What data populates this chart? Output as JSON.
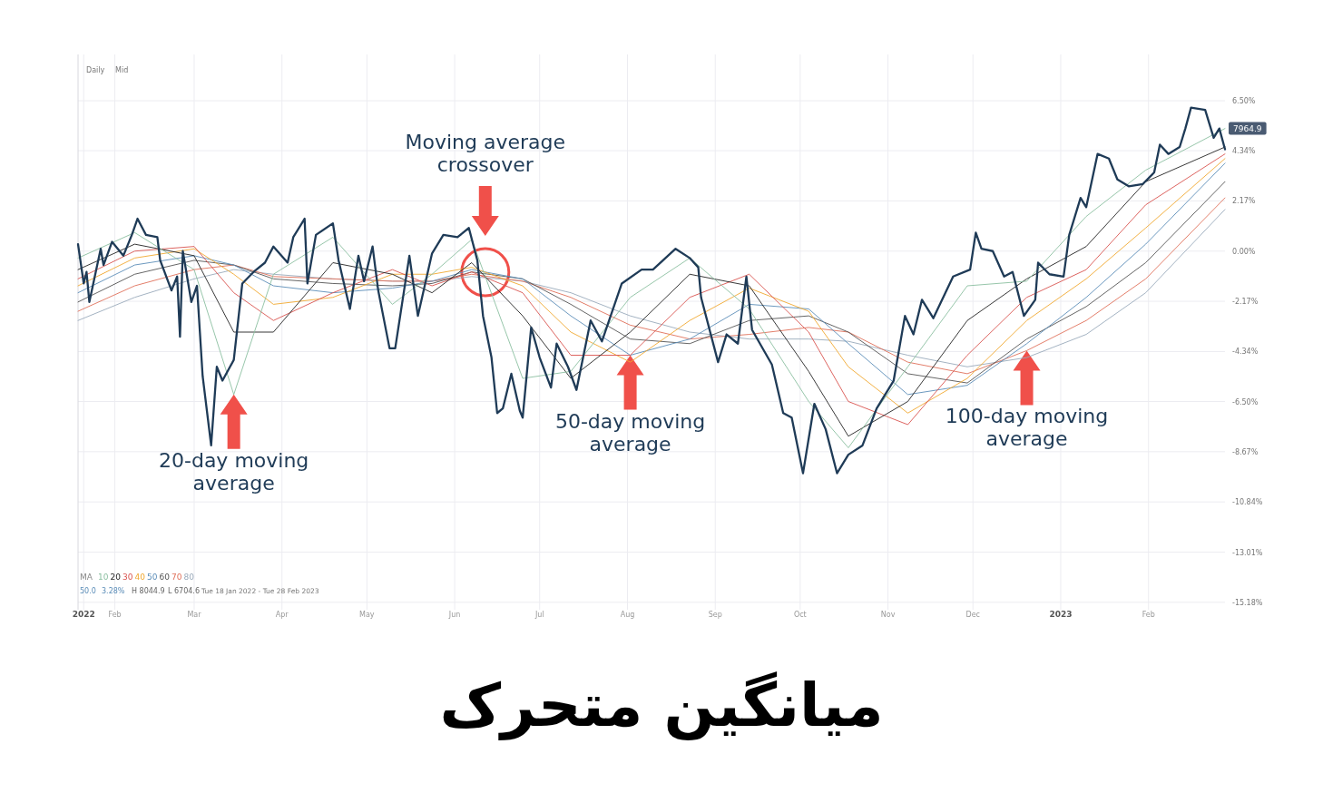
{
  "chart_data": {
    "type": "line",
    "title": "میانگین متحرک",
    "legend_title": "MA",
    "legend": "bottom left",
    "grid": true,
    "xlim": [
      "2022-01-19",
      "2023-02-28"
    ],
    "xticks": [
      {
        "value": "2022-01-21",
        "label": "2022"
      },
      {
        "value": "2022-02-01",
        "label": "Feb"
      },
      {
        "value": "2022-03-01",
        "label": "Mar"
      },
      {
        "value": "2022-04-01",
        "label": "Apr"
      },
      {
        "value": "2022-05-01",
        "label": "May"
      },
      {
        "value": "2022-06-01",
        "label": "Jun"
      },
      {
        "value": "2022-07-01",
        "label": "Jul"
      },
      {
        "value": "2022-08-01",
        "label": "Aug"
      },
      {
        "value": "2022-09-01",
        "label": "Sep"
      },
      {
        "value": "2022-10-01",
        "label": "Oct"
      },
      {
        "value": "2022-11-01",
        "label": "Nov"
      },
      {
        "value": "2022-12-01",
        "label": "Dec"
      },
      {
        "value": "2023-01-01",
        "label": "2023"
      },
      {
        "value": "2023-02-01",
        "label": "Feb"
      }
    ],
    "ylim": [
      -15.5,
      8.5
    ],
    "yticks": [
      {
        "value": 6.5,
        "label": "6.50%"
      },
      {
        "value": 4.34,
        "label": "4.34%"
      },
      {
        "value": 2.17,
        "label": "2.17%"
      },
      {
        "value": 0,
        "label": "0.00%"
      },
      {
        "value": -2.17,
        "label": "-2.17%"
      },
      {
        "value": -4.34,
        "label": "-4.34%"
      },
      {
        "value": -6.5,
        "label": "-6.50%"
      },
      {
        "value": -8.67,
        "label": "-8.67%"
      },
      {
        "value": -10.84,
        "label": "-10.84%"
      },
      {
        "value": -13.01,
        "label": "-13.01%"
      },
      {
        "value": -15.18,
        "label": "-15.18%"
      }
    ],
    "x": [
      "2022-01-19",
      "2022-02-08",
      "2022-03-01",
      "2022-03-15",
      "2022-03-29",
      "2022-04-19",
      "2022-05-10",
      "2022-05-24",
      "2022-06-07",
      "2022-06-25",
      "2022-07-12",
      "2022-08-02",
      "2022-08-23",
      "2022-09-13",
      "2022-10-04",
      "2022-10-18",
      "2022-11-08",
      "2022-11-29",
      "2022-12-20",
      "2023-01-10",
      "2023-01-31",
      "2023-02-28"
    ],
    "series": [
      {
        "name": "80",
        "color": "#9aaabb",
        "values": [
          -3.0,
          -2.0,
          -1.2,
          -0.8,
          -1.0,
          -1.2,
          -1.3,
          -1.3,
          -1.1,
          -1.3,
          -1.8,
          -2.8,
          -3.5,
          -3.8,
          -3.8,
          -3.9,
          -4.5,
          -5.0,
          -4.6,
          -3.6,
          -1.8,
          1.8
        ]
      },
      {
        "name": "70",
        "color": "#e0705a",
        "values": [
          -2.6,
          -1.5,
          -0.8,
          -0.6,
          -1.1,
          -1.2,
          -1.3,
          -1.3,
          -1.0,
          -1.3,
          -2.0,
          -3.2,
          -3.8,
          -3.6,
          -3.3,
          -3.5,
          -4.8,
          -5.3,
          -4.3,
          -3.0,
          -1.2,
          2.3
        ]
      },
      {
        "name": "60",
        "color": "#555555",
        "values": [
          -2.2,
          -1.0,
          -0.4,
          -0.6,
          -1.2,
          -1.4,
          -1.5,
          -1.4,
          -0.9,
          -1.2,
          -2.3,
          -3.8,
          -4.0,
          -3.0,
          -2.8,
          -3.5,
          -5.3,
          -5.7,
          -3.8,
          -2.4,
          -0.5,
          3.0
        ]
      },
      {
        "name": "50",
        "color": "#5b8db8",
        "values": [
          -1.8,
          -0.6,
          -0.2,
          -0.6,
          -1.5,
          -1.8,
          -1.6,
          -1.3,
          -0.8,
          -1.2,
          -2.8,
          -4.5,
          -3.8,
          -2.3,
          -2.5,
          -4.0,
          -6.2,
          -5.8,
          -4.0,
          -2.0,
          0.3,
          3.8
        ]
      },
      {
        "name": "40",
        "color": "#f0a830",
        "values": [
          -1.5,
          -0.3,
          0.1,
          -1.0,
          -2.3,
          -2.0,
          -1.0,
          -1.0,
          -0.7,
          -1.5,
          -3.5,
          -4.8,
          -3.0,
          -1.6,
          -2.6,
          -5.0,
          -7.0,
          -5.5,
          -3.0,
          -1.2,
          1.0,
          4.0
        ]
      },
      {
        "name": "30",
        "color": "#d9534f",
        "values": [
          -1.2,
          0.0,
          0.2,
          -1.8,
          -3.0,
          -1.8,
          -0.8,
          -1.5,
          -0.9,
          -1.8,
          -4.5,
          -4.5,
          -2.0,
          -1.0,
          -3.5,
          -6.5,
          -7.5,
          -4.5,
          -2.0,
          -0.8,
          2.0,
          4.2
        ]
      },
      {
        "name": "20",
        "color": "#222222",
        "values": [
          -0.8,
          0.3,
          -0.2,
          -3.5,
          -3.5,
          -0.5,
          -1.0,
          -1.8,
          -0.5,
          -2.8,
          -5.5,
          -3.5,
          -1.0,
          -1.5,
          -5.2,
          -8.0,
          -6.5,
          -3.0,
          -1.2,
          0.2,
          3.0,
          4.5
        ]
      },
      {
        "name": "10",
        "color": "#8bbfa0",
        "values": [
          -0.3,
          0.8,
          -0.8,
          -6.2,
          -1.0,
          0.6,
          -2.3,
          -1.0,
          0.5,
          -5.5,
          -5.2,
          -2.0,
          -0.3,
          -2.5,
          -6.5,
          -8.5,
          -5.0,
          -1.5,
          -1.3,
          1.5,
          3.5,
          5.3
        ]
      },
      {
        "color": "#1f3b57",
        "x": [
          "2022-01-19",
          "2022-01-21",
          "2022-01-22",
          "2022-01-23",
          "2022-01-27",
          "2022-01-28",
          "2022-01-31",
          "2022-02-04",
          "2022-02-07",
          "2022-02-09",
          "2022-02-12",
          "2022-02-16",
          "2022-02-17",
          "2022-02-21",
          "2022-02-23",
          "2022-02-24",
          "2022-02-25",
          "2022-02-28",
          "2022-03-02",
          "2022-03-04",
          "2022-03-07",
          "2022-03-09",
          "2022-03-11",
          "2022-03-15",
          "2022-03-18",
          "2022-03-22",
          "2022-03-26",
          "2022-03-29",
          "2022-04-03",
          "2022-04-05",
          "2022-04-09",
          "2022-04-10",
          "2022-04-13",
          "2022-04-19",
          "2022-04-21",
          "2022-04-25",
          "2022-04-28",
          "2022-04-30",
          "2022-05-03",
          "2022-05-05",
          "2022-05-09",
          "2022-05-11",
          "2022-05-16",
          "2022-05-19",
          "2022-05-24",
          "2022-05-28",
          "2022-06-02",
          "2022-06-06",
          "2022-06-09",
          "2022-06-11",
          "2022-06-14",
          "2022-06-16",
          "2022-06-18",
          "2022-06-21",
          "2022-06-24",
          "2022-06-25",
          "2022-06-28",
          "2022-07-01",
          "2022-07-05",
          "2022-07-07",
          "2022-07-11",
          "2022-07-14",
          "2022-07-19",
          "2022-07-23",
          "2022-07-30",
          "2022-08-06",
          "2022-08-10",
          "2022-08-18",
          "2022-08-23",
          "2022-08-26",
          "2022-08-27",
          "2022-09-02",
          "2022-09-05",
          "2022-09-09",
          "2022-09-12",
          "2022-09-14",
          "2022-09-21",
          "2022-09-25",
          "2022-09-28",
          "2022-10-02",
          "2022-10-06",
          "2022-10-10",
          "2022-10-14",
          "2022-10-18",
          "2022-10-23",
          "2022-10-28",
          "2022-11-03",
          "2022-11-07",
          "2022-11-10",
          "2022-11-13",
          "2022-11-17",
          "2022-11-24",
          "2022-11-30",
          "2022-12-02",
          "2022-12-04",
          "2022-12-08",
          "2022-12-12",
          "2022-12-15",
          "2022-12-19",
          "2022-12-23",
          "2022-12-24",
          "2022-12-28",
          "2023-01-02",
          "2023-01-04",
          "2023-01-08",
          "2023-01-10",
          "2023-01-14",
          "2023-01-18",
          "2023-01-21",
          "2023-01-25",
          "2023-01-30",
          "2023-02-03",
          "2023-02-05",
          "2023-02-08",
          "2023-02-12",
          "2023-02-14",
          "2023-02-16",
          "2023-02-21",
          "2023-02-24",
          "2023-02-26",
          "2023-02-28"
        ],
        "values": [
          0.3,
          -1.4,
          -0.9,
          -2.2,
          0.1,
          -0.6,
          0.4,
          -0.2,
          0.7,
          1.4,
          0.7,
          0.6,
          -0.4,
          -1.7,
          -1.1,
          -3.7,
          0.0,
          -2.2,
          -1.5,
          -5.4,
          -8.4,
          -5.0,
          -5.6,
          -4.7,
          -1.4,
          -0.9,
          -0.5,
          0.2,
          -0.5,
          0.6,
          1.4,
          -1.4,
          0.7,
          1.2,
          -0.4,
          -2.5,
          -0.2,
          -1.3,
          0.2,
          -1.7,
          -4.2,
          -4.2,
          -0.2,
          -2.8,
          -0.1,
          0.7,
          0.6,
          1.0,
          -0.4,
          -2.8,
          -4.6,
          -7.0,
          -6.8,
          -5.3,
          -6.9,
          -7.2,
          -3.3,
          -4.6,
          -5.9,
          -4.0,
          -5.0,
          -6.0,
          -3.0,
          -3.9,
          -1.4,
          -0.8,
          -0.8,
          0.1,
          -0.3,
          -0.7,
          -2.0,
          -4.8,
          -3.6,
          -4.0,
          -1.1,
          -3.4,
          -4.9,
          -7.0,
          -7.2,
          -9.6,
          -6.6,
          -7.7,
          -9.6,
          -8.8,
          -8.4,
          -6.8,
          -5.6,
          -2.8,
          -3.6,
          -2.1,
          -2.9,
          -1.1,
          -0.8,
          0.8,
          0.1,
          0.0,
          -1.1,
          -0.9,
          -2.8,
          -2.1,
          -0.5,
          -1.0,
          -1.1,
          0.7,
          2.3,
          1.9,
          4.2,
          4.0,
          3.1,
          2.8,
          2.9,
          3.4,
          4.6,
          4.2,
          4.5,
          5.3,
          6.2,
          6.1,
          4.9,
          5.3,
          4.4
        ]
      }
    ],
    "annotations": [
      "Daily",
      "Mid",
      "50.0",
      "3.28%",
      "H 8044.9",
      "L 6704.6",
      "Tue 18 Jan 2022 - Tue 28 Feb 2023",
      {
        "text": "7964.9",
        "x": "2023-02-26",
        "y": 5.3
      },
      {
        "text": "20-day moving average",
        "x": "2022-03-15",
        "y": -6.2
      },
      "Moving average crossover",
      {
        "text": "50-day moving average",
        "x": "2022-08-02",
        "y": -4.5
      },
      {
        "text": "100-day moving average",
        "x": "2022-12-20",
        "y": -4.3
      }
    ]
  }
}
